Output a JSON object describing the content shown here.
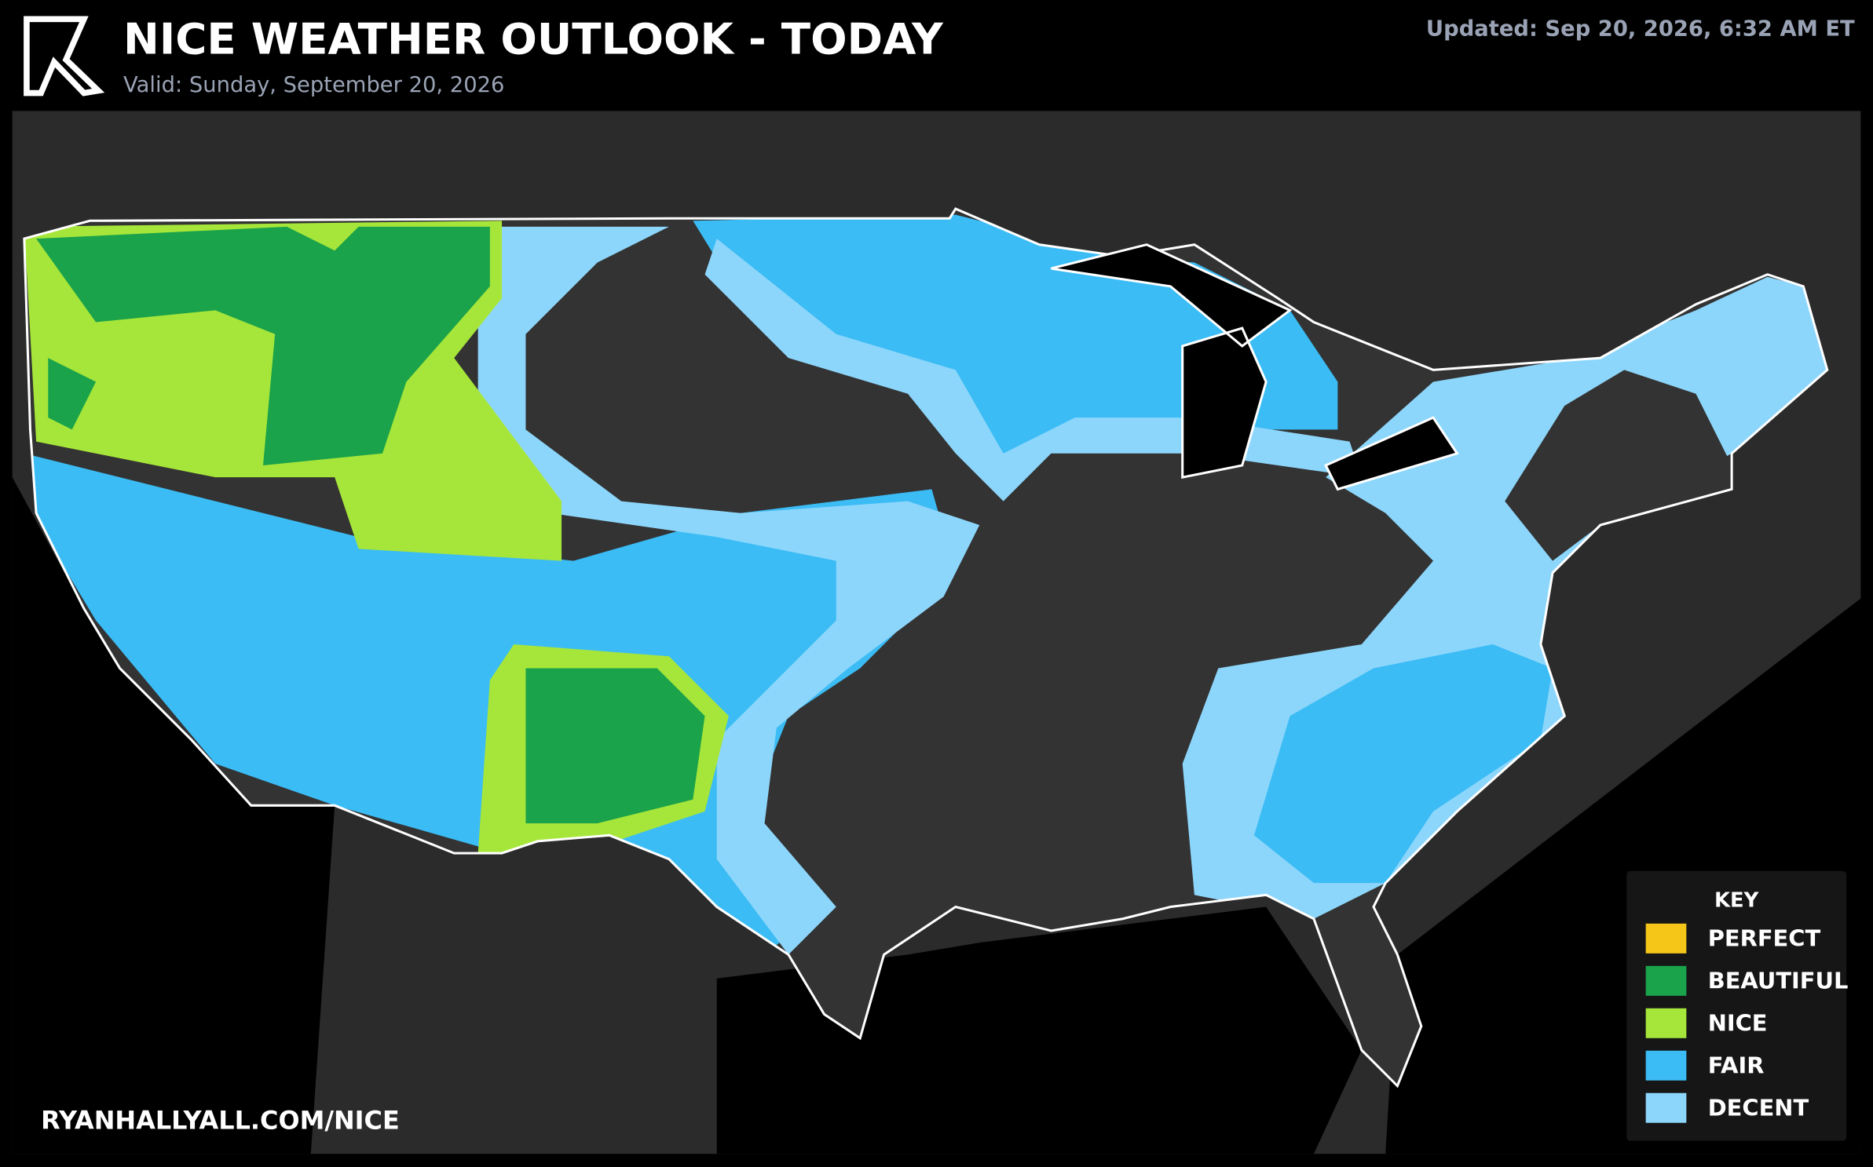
{
  "header": {
    "title": "NICE WEATHER OUTLOOK - TODAY",
    "subtitle": "Valid: Sunday, September 20, 2026",
    "updated": "Updated: Sep 20, 2026, 6:32 AM ET"
  },
  "footer": {
    "url": "RYANHALLYALL.COM/NICE"
  },
  "legend": {
    "title": "KEY",
    "items": [
      {
        "label": "PERFECT",
        "color": "#f5c518"
      },
      {
        "label": "BEAUTIFUL",
        "color": "#1aa34a"
      },
      {
        "label": "NICE",
        "color": "#a6e63a"
      },
      {
        "label": "FAIR",
        "color": "#3bbcf5"
      },
      {
        "label": "DECENT",
        "color": "#8dd6fb"
      }
    ]
  }
}
